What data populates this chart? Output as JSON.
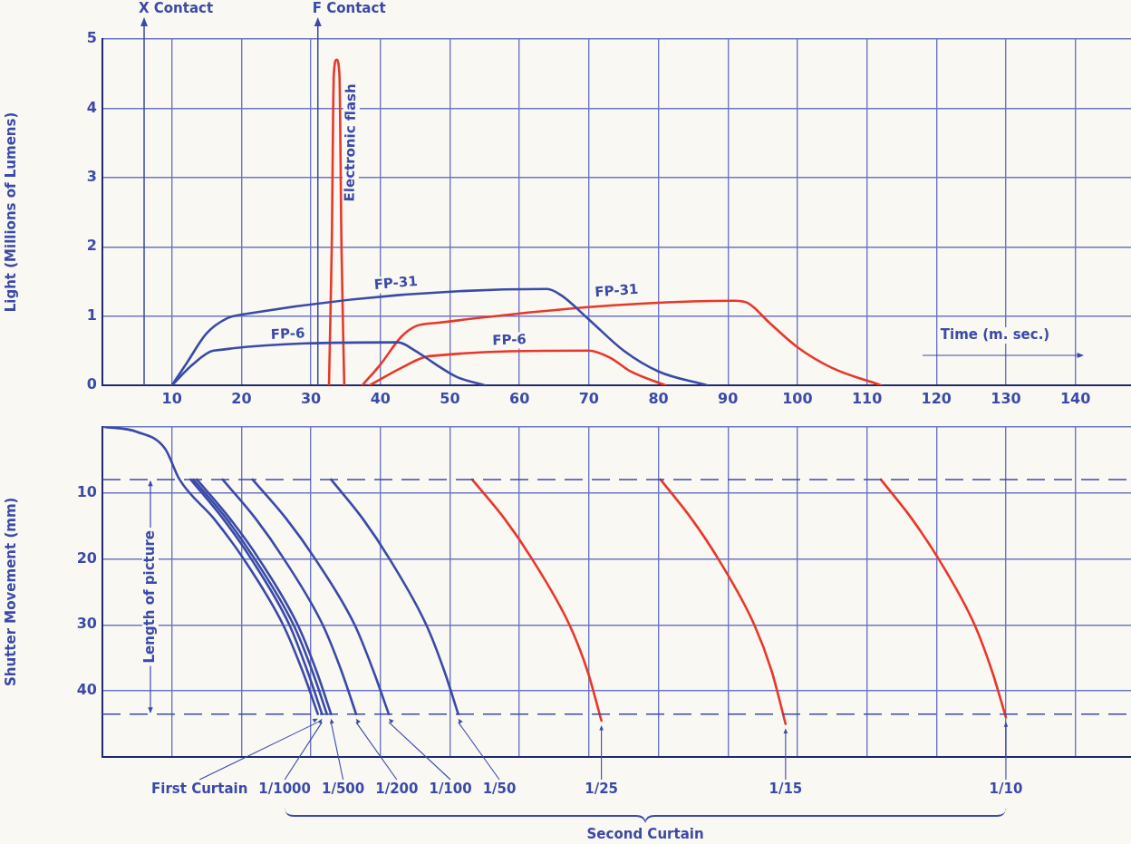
{
  "chart_data": [
    {
      "type": "line",
      "ylabel": "Light (Millions of Lumens)",
      "xlabel": "Time (m. sec.)",
      "xlim": [
        0,
        148
      ],
      "xticks": [
        10,
        20,
        30,
        40,
        50,
        60,
        70,
        80,
        90,
        100,
        110,
        120,
        130,
        140
      ],
      "ylim": [
        0,
        5
      ],
      "yticks": [
        0,
        1,
        2,
        3,
        4,
        5
      ],
      "grid": true,
      "legend": false,
      "marker": "none",
      "ref_lines": [
        {
          "axis": "x",
          "value": 6,
          "label": "X Contact"
        },
        {
          "axis": "x",
          "value": 31,
          "label": "F Contact"
        }
      ],
      "series": [
        {
          "name": "FP-31",
          "color": "#3a4aa8",
          "x": [
            10,
            12,
            15,
            18,
            20,
            64,
            66,
            70,
            75,
            80,
            87
          ],
          "values": [
            0,
            0.3,
            0.75,
            0.97,
            1.02,
            1.39,
            1.3,
            0.95,
            0.5,
            0.2,
            0
          ]
        },
        {
          "name": "FP-6",
          "color": "#3a4aa8",
          "x": [
            10,
            13,
            16,
            42.5,
            45,
            48,
            51,
            55
          ],
          "values": [
            0,
            0.3,
            0.5,
            0.62,
            0.5,
            0.3,
            0.12,
            0
          ]
        },
        {
          "name": "Electronic flash",
          "color": "#e8372b",
          "x": [
            32.6,
            33,
            33.3,
            33.7,
            34.1,
            34.4,
            34.8
          ],
          "values": [
            0,
            2,
            4.5,
            4.7,
            4.5,
            2,
            0
          ]
        },
        {
          "name": "FP-31",
          "color": "#e8372b",
          "x": [
            37.4,
            40,
            43,
            45,
            48,
            91,
            93,
            96,
            100,
            105,
            112
          ],
          "values": [
            0,
            0.3,
            0.7,
            0.85,
            0.9,
            1.22,
            1.18,
            0.9,
            0.55,
            0.25,
            0
          ]
        },
        {
          "name": "FP-6",
          "color": "#e8372b",
          "x": [
            38.5,
            43,
            47,
            70,
            73,
            76,
            81
          ],
          "values": [
            0,
            0.25,
            0.42,
            0.5,
            0.4,
            0.2,
            0
          ]
        }
      ]
    },
    {
      "type": "line",
      "ylabel": "Shutter Movement (mm)",
      "xlim": [
        0,
        148
      ],
      "xticks": [
        10,
        20,
        30,
        40,
        50,
        60,
        70,
        80,
        90,
        100,
        110,
        120,
        130,
        140
      ],
      "ylim": [
        50,
        0
      ],
      "yticks": [
        {
          "value": 0,
          "label": null
        },
        10,
        20,
        30,
        40
      ],
      "tick_labels": "y",
      "grid": true,
      "legend": false,
      "marker": "none",
      "ref_lines": [
        {
          "axis": "y",
          "value": 8,
          "line_style": "dashed"
        },
        {
          "axis": "y",
          "value": 43.5,
          "line_style": "dashed"
        }
      ],
      "annotations": [
        "Length of picture",
        "Second Curtain"
      ],
      "series": [
        {
          "name": "First Curtain",
          "color": "#3a4aa8",
          "x": [
            0,
            5,
            9,
            11.1,
            16.1,
            20.3,
            26.0,
            28.8,
            31.0
          ],
          "values": [
            0,
            0.8,
            3.3,
            8,
            14,
            20,
            30,
            37,
            43.5
          ]
        },
        {
          "name": "1/1000",
          "color": "#3a4aa8",
          "x": [
            12.7,
            17.4,
            21.4,
            26.9,
            29.5,
            31.6
          ],
          "values": [
            8,
            14,
            20,
            30,
            37,
            43.5
          ]
        },
        {
          "color": "#3a4aa8",
          "x": [
            13.1,
            17.9,
            21.9,
            27.5,
            30.2,
            32.3
          ],
          "values": [
            8,
            14,
            20,
            30,
            37,
            43.5
          ]
        },
        {
          "name": "1/500",
          "color": "#3a4aa8",
          "x": [
            13.6,
            18.4,
            22.5,
            28.1,
            30.8,
            32.9
          ],
          "values": [
            8,
            14,
            20,
            30,
            37,
            43.5
          ]
        },
        {
          "name": "1/200",
          "color": "#3a4aa8",
          "x": [
            17.3,
            22.1,
            26.1,
            31.7,
            34.4,
            36.5
          ],
          "values": [
            8,
            14,
            20,
            30,
            37,
            43.5
          ]
        },
        {
          "name": "1/100",
          "color": "#3a4aa8",
          "x": [
            21.6,
            26.5,
            30.6,
            36.3,
            39.0,
            41.2
          ],
          "values": [
            8,
            14,
            20,
            30,
            37,
            43.5
          ]
        },
        {
          "name": "1/50",
          "color": "#3a4aa8",
          "x": [
            32.9,
            37.5,
            41.3,
            46.6,
            49.2,
            51.2
          ],
          "values": [
            8,
            14,
            20,
            30,
            37,
            43.5
          ]
        },
        {
          "name": "1/25",
          "color": "#e8372b",
          "x": [
            53.2,
            57.9,
            61.8,
            67.2,
            69.8,
            71.8
          ],
          "values": [
            8,
            14,
            20,
            30,
            37,
            44.5
          ]
        },
        {
          "name": "1/15",
          "color": "#e8372b",
          "x": [
            80.3,
            84.8,
            88.6,
            93.8,
            96.3,
            98.3
          ],
          "values": [
            8,
            14,
            20,
            30,
            37,
            45
          ]
        },
        {
          "name": "1/10",
          "color": "#e8372b",
          "x": [
            112.0,
            116.5,
            120.3,
            125.5,
            128.0,
            130.0
          ],
          "values": [
            8,
            14,
            20,
            30,
            37,
            44
          ]
        }
      ]
    }
  ]
}
